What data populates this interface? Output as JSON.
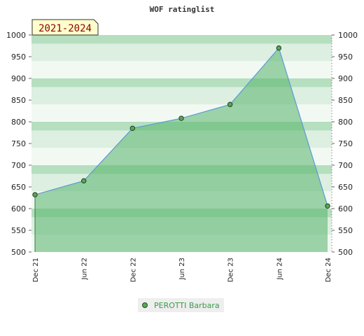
{
  "chart_data": {
    "type": "area",
    "title": "WOF ratinglist",
    "badge": "2021-2024",
    "categories": [
      "Dec 21",
      "Jun 22",
      "Dec 22",
      "Jun 23",
      "Dec 23",
      "Jun 24",
      "Dec 24"
    ],
    "series": [
      {
        "name": "PEROTTI Barbara",
        "values": [
          632,
          664,
          785,
          808,
          840,
          970,
          606
        ]
      }
    ],
    "ylim": [
      500,
      1000
    ],
    "yticks": [
      500,
      550,
      600,
      650,
      700,
      750,
      800,
      850,
      900,
      950,
      1000
    ],
    "y_axis_both_sides": true,
    "grid": "horizontal bands",
    "legend": "bottom-center",
    "colors": {
      "line": "#5b9bd5",
      "area": "#56b36a",
      "marker": "#5aa55a",
      "band_dark": "#b5dfbf",
      "band_mid": "#dcefe1",
      "band_light": "#f2f9f3",
      "badge_bg": "#ffffcc",
      "badge_text": "#8b0000",
      "legend_text": "#3a9a4a"
    }
  }
}
